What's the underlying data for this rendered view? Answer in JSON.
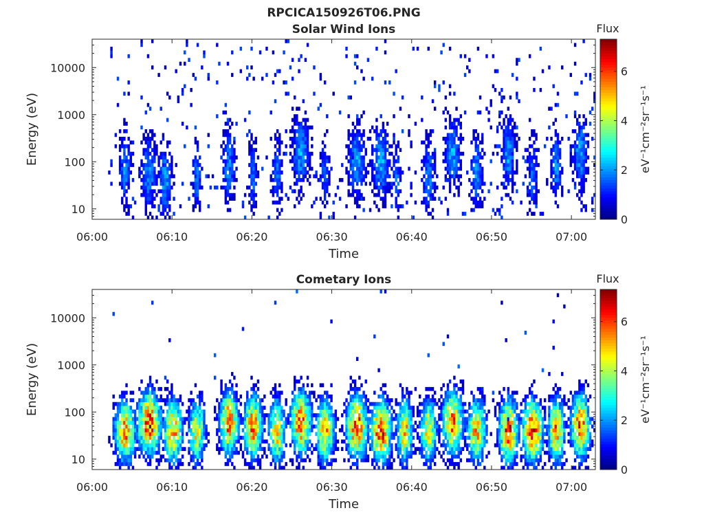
{
  "figure_title": "RPCICA150926T06.PNG",
  "chart_data": [
    {
      "type": "heatmap",
      "title": "Solar Wind Ions",
      "xlabel": "Time",
      "ylabel": "Energy (eV)",
      "x_ticks": [
        "06:00",
        "06:10",
        "06:20",
        "06:30",
        "06:40",
        "06:50",
        "07:00"
      ],
      "xlim": [
        "06:00",
        "07:03"
      ],
      "y_scale": "log",
      "y_ticks": [
        "10",
        "100",
        "1000",
        "10000"
      ],
      "ylim": [
        6,
        40000
      ],
      "colorbar": {
        "title": "Flux",
        "label": "eV⁻¹cm⁻²sr⁻¹s⁻¹",
        "ticks": [
          "0",
          "2",
          "4",
          "6"
        ],
        "range": [
          0,
          7.3
        ],
        "colormap": "jet"
      },
      "data_start": "06:02",
      "data_end": "07:03",
      "bursts": [
        [
          "06:04",
          70,
          0.5,
          1.8
        ],
        [
          "06:07",
          60,
          0.7,
          1.9
        ],
        [
          "06:09",
          40,
          0.6,
          2.0
        ],
        [
          "06:13",
          50,
          0.4,
          1.7
        ],
        [
          "06:17",
          80,
          0.6,
          1.8
        ],
        [
          "06:20",
          50,
          0.4,
          1.6
        ],
        [
          "06:23",
          60,
          0.5,
          1.7
        ],
        [
          "06:26",
          150,
          0.8,
          2.0
        ],
        [
          "06:29",
          60,
          0.4,
          1.6
        ],
        [
          "06:33",
          100,
          0.8,
          2.0
        ],
        [
          "06:36",
          100,
          0.8,
          2.1
        ],
        [
          "06:38",
          40,
          0.4,
          1.6
        ],
        [
          "06:42",
          50,
          0.6,
          1.8
        ],
        [
          "06:45",
          150,
          0.7,
          2.0
        ],
        [
          "06:48",
          60,
          0.6,
          1.8
        ],
        [
          "06:52",
          150,
          0.6,
          2.0
        ],
        [
          "06:55",
          60,
          0.5,
          1.6
        ],
        [
          "06:58",
          80,
          0.5,
          1.8
        ],
        [
          "07:01",
          150,
          0.7,
          2.0
        ]
      ]
    },
    {
      "type": "heatmap",
      "title": "Cometary Ions",
      "xlabel": "Time",
      "ylabel": "Energy (eV)",
      "x_ticks": [
        "06:00",
        "06:10",
        "06:20",
        "06:30",
        "06:40",
        "06:50",
        "07:00"
      ],
      "xlim": [
        "06:00",
        "07:03"
      ],
      "y_scale": "log",
      "y_ticks": [
        "10",
        "100",
        "1000",
        "10000"
      ],
      "ylim": [
        6,
        40000
      ],
      "colorbar": {
        "title": "Flux",
        "label": "eV⁻¹cm⁻²sr⁻¹s⁻¹",
        "ticks": [
          "0",
          "2",
          "4",
          "6"
        ],
        "range": [
          0,
          7.3
        ],
        "colormap": "jet"
      },
      "data_start": "06:02",
      "data_end": "07:03",
      "bursts": [
        [
          "06:04",
          40,
          0.9,
          5.2
        ],
        [
          "06:07",
          60,
          1.0,
          5.8
        ],
        [
          "06:10",
          40,
          0.8,
          5.3
        ],
        [
          "06:13",
          40,
          0.7,
          4.6
        ],
        [
          "06:17",
          60,
          0.8,
          5.5
        ],
        [
          "06:20",
          50,
          0.8,
          5.4
        ],
        [
          "06:23",
          40,
          0.7,
          4.8
        ],
        [
          "06:26",
          60,
          0.9,
          5.6
        ],
        [
          "06:29",
          40,
          0.8,
          5.0
        ],
        [
          "06:33",
          50,
          0.9,
          5.8
        ],
        [
          "06:36",
          40,
          0.9,
          5.9
        ],
        [
          "06:39",
          40,
          0.7,
          4.8
        ],
        [
          "06:42",
          40,
          0.7,
          4.7
        ],
        [
          "06:45",
          60,
          0.9,
          5.4
        ],
        [
          "06:48",
          40,
          0.8,
          5.0
        ],
        [
          "06:52",
          40,
          0.8,
          5.9
        ],
        [
          "06:55",
          40,
          0.9,
          5.9
        ],
        [
          "06:58",
          40,
          0.7,
          5.3
        ],
        [
          "07:01",
          50,
          0.8,
          5.7
        ]
      ]
    }
  ]
}
